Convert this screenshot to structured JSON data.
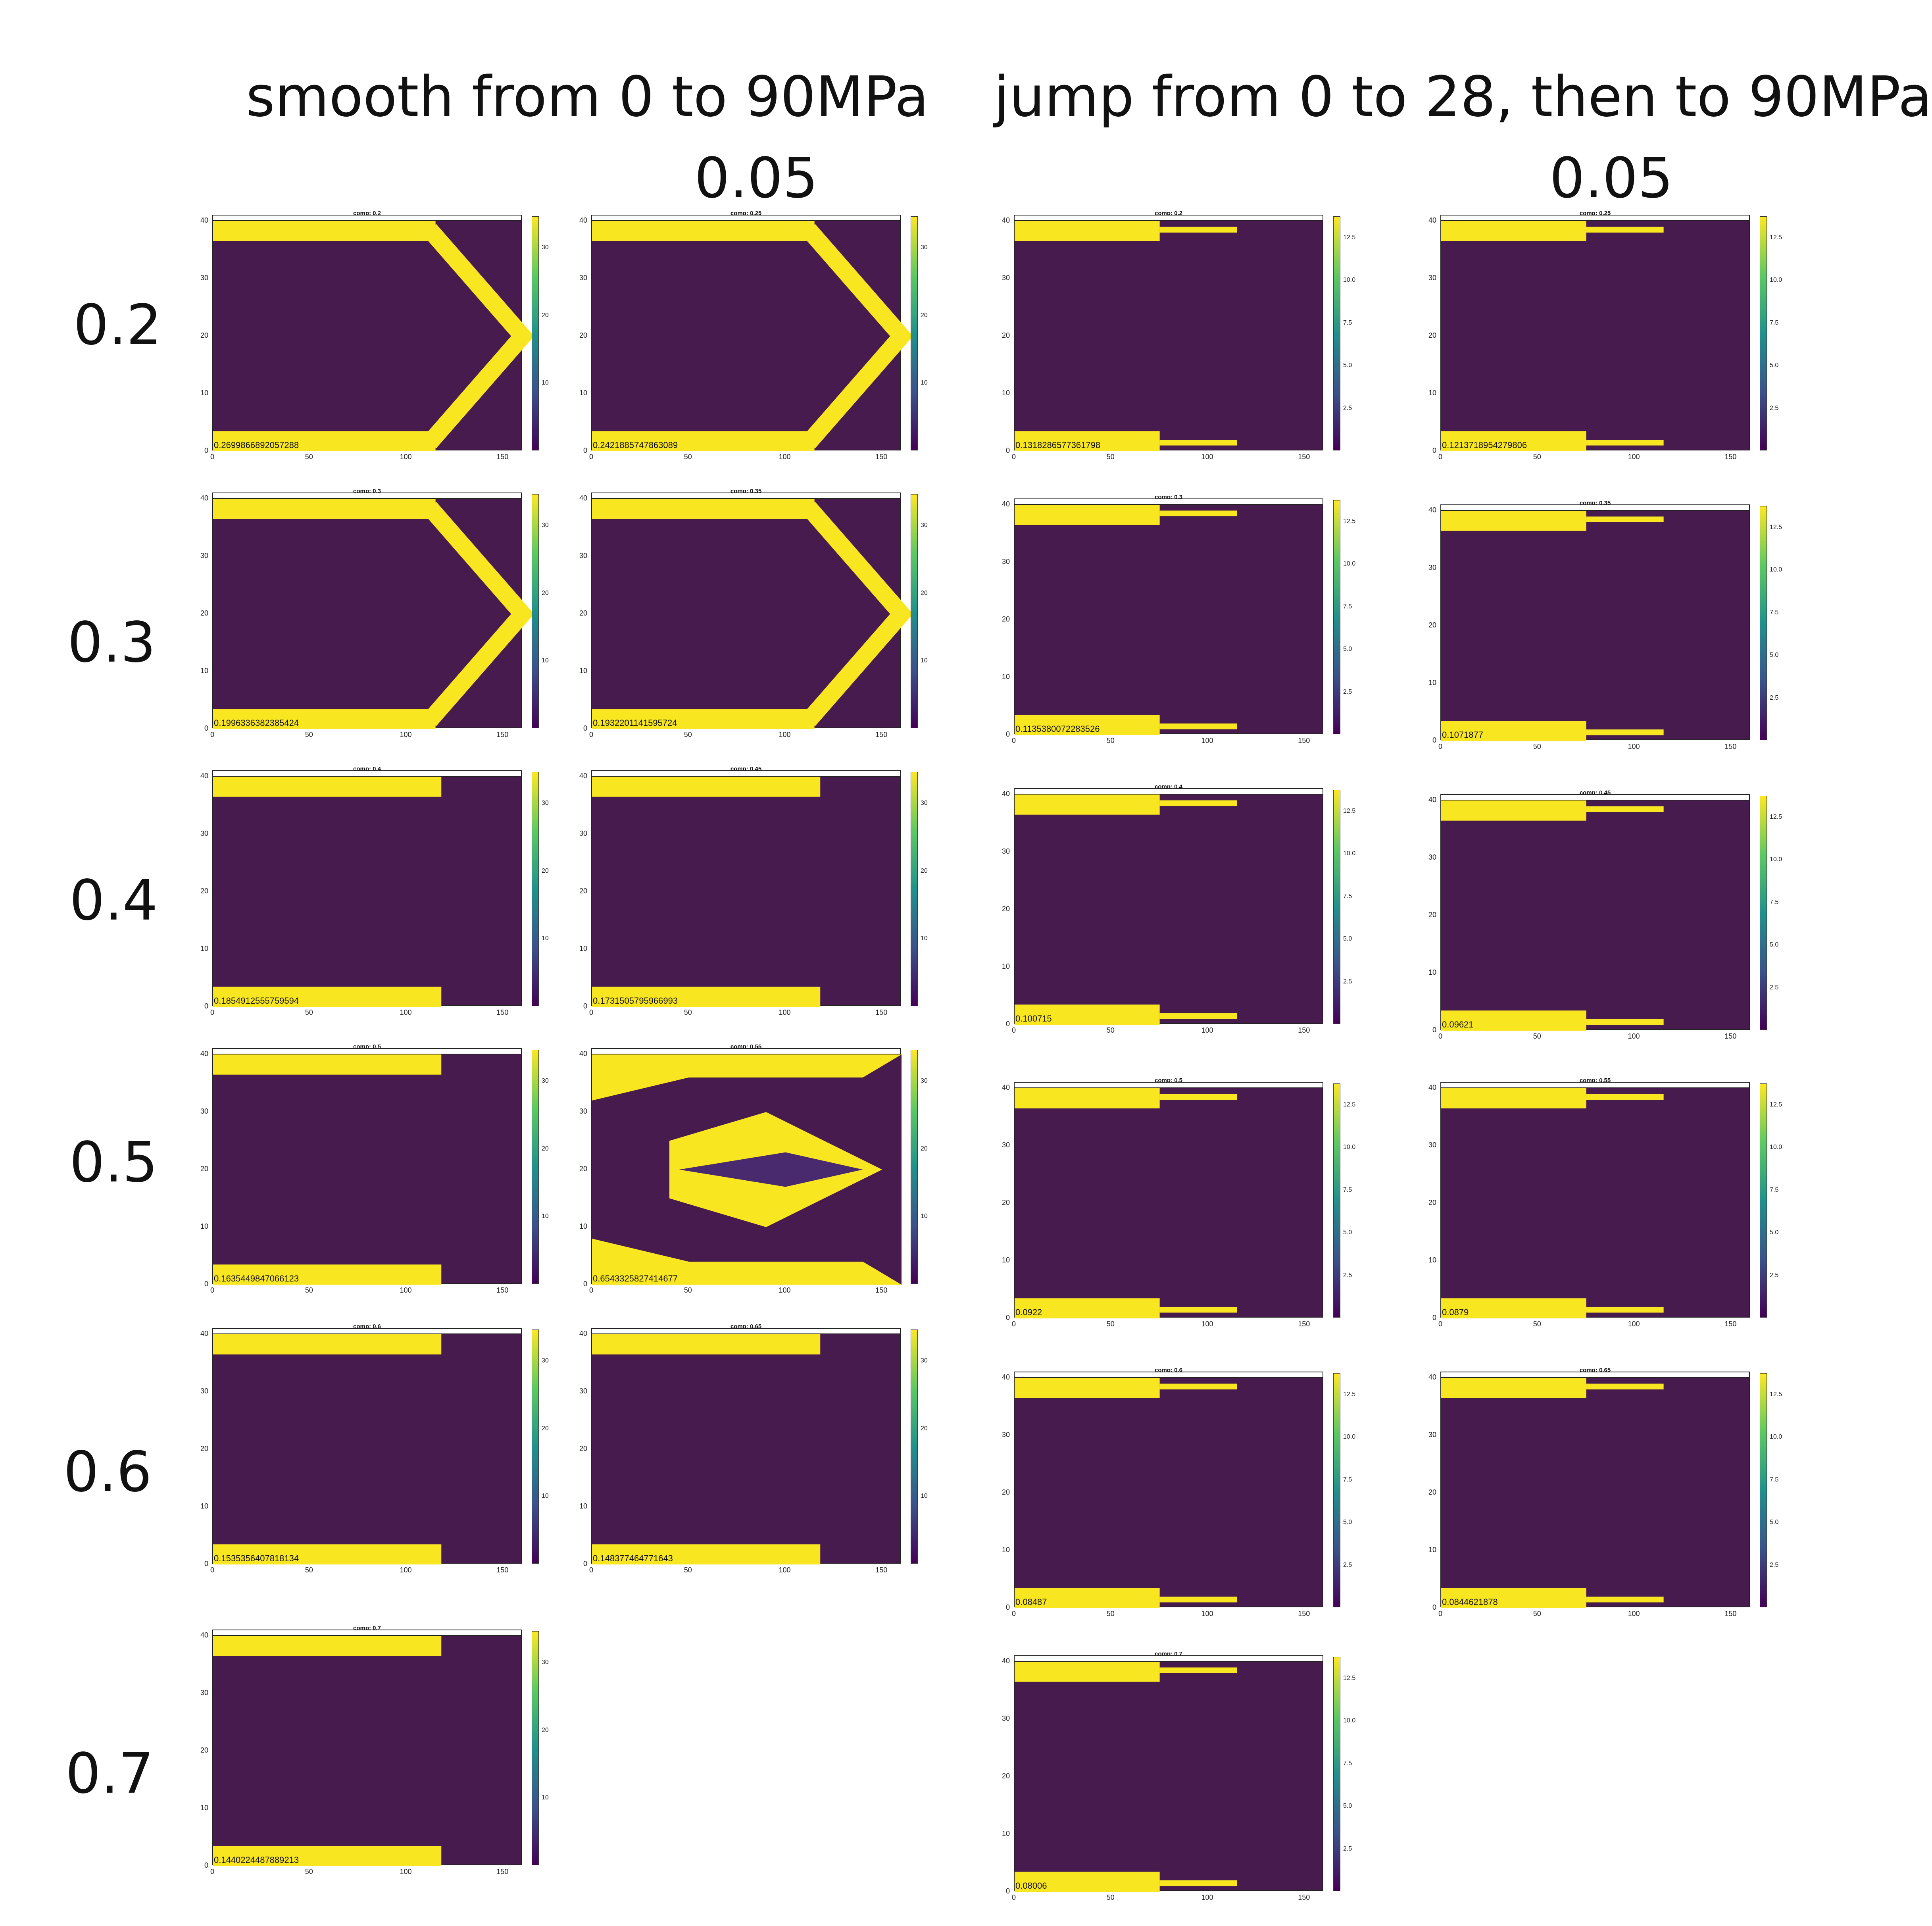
{
  "headers": {
    "left": "smooth from 0 to 90MPa",
    "right": "jump from 0 to 28, then to 90MPa",
    "left_sub": "0.05",
    "right_sub": "0.05"
  },
  "row_labels": [
    "0.2",
    "0.3",
    "0.4",
    "0.5",
    "0.6",
    "0.7"
  ],
  "colors": {
    "low": "#481b4f",
    "high": "#f8e621",
    "frame": "#222222"
  },
  "chart_data": [
    {
      "group": "smooth",
      "title": "comp: 0.2",
      "value_label": "0.2699866892057288",
      "type": "heatmap",
      "pattern": "chevron",
      "xlim": [
        0,
        160
      ],
      "ylim": [
        0,
        40
      ],
      "xticks": [
        "0",
        "50",
        "100",
        "150"
      ],
      "yticks": [
        "0",
        "10",
        "20",
        "30",
        "40"
      ],
      "colorbar": [
        "10",
        "20",
        "30"
      ]
    },
    {
      "group": "smooth",
      "title": "comp: 0.25",
      "value_label": "0.2421885747863089",
      "type": "heatmap",
      "pattern": "chevron",
      "xlim": [
        0,
        160
      ],
      "ylim": [
        0,
        40
      ],
      "xticks": [
        "0",
        "50",
        "100",
        "150"
      ],
      "yticks": [
        "0",
        "10",
        "20",
        "30",
        "40"
      ],
      "colorbar": [
        "10",
        "20",
        "30"
      ]
    },
    {
      "group": "smooth",
      "title": "comp: 0.3",
      "value_label": "0.1996336382385424",
      "type": "heatmap",
      "pattern": "chevron",
      "xlim": [
        0,
        160
      ],
      "ylim": [
        0,
        40
      ],
      "xticks": [
        "0",
        "50",
        "100",
        "150"
      ],
      "yticks": [
        "0",
        "10",
        "20",
        "30",
        "40"
      ],
      "colorbar": [
        "10",
        "20",
        "30"
      ]
    },
    {
      "group": "smooth",
      "title": "comp: 0.35",
      "value_label": "0.1932201141595724",
      "type": "heatmap",
      "pattern": "chevron",
      "xlim": [
        0,
        160
      ],
      "ylim": [
        0,
        40
      ],
      "xticks": [
        "0",
        "50",
        "100",
        "150"
      ],
      "yticks": [
        "0",
        "10",
        "20",
        "30",
        "40"
      ],
      "colorbar": [
        "10",
        "20",
        "30"
      ]
    },
    {
      "group": "smooth",
      "title": "comp: 0.4",
      "value_label": "0.1854912555759594",
      "type": "heatmap",
      "pattern": "bands",
      "xlim": [
        0,
        160
      ],
      "ylim": [
        0,
        40
      ],
      "xticks": [
        "0",
        "50",
        "100",
        "150"
      ],
      "yticks": [
        "0",
        "10",
        "20",
        "30",
        "40"
      ],
      "colorbar": [
        "10",
        "20",
        "30"
      ]
    },
    {
      "group": "smooth",
      "title": "comp: 0.45",
      "value_label": "0.1731505795966993",
      "type": "heatmap",
      "pattern": "bands",
      "xlim": [
        0,
        160
      ],
      "ylim": [
        0,
        40
      ],
      "xticks": [
        "0",
        "50",
        "100",
        "150"
      ],
      "yticks": [
        "0",
        "10",
        "20",
        "30",
        "40"
      ],
      "colorbar": [
        "10",
        "20",
        "30"
      ]
    },
    {
      "group": "smooth",
      "title": "comp: 0.5",
      "value_label": "0.1635449847066123",
      "type": "heatmap",
      "pattern": "bands",
      "xlim": [
        0,
        160
      ],
      "ylim": [
        0,
        40
      ],
      "xticks": [
        "0",
        "50",
        "100",
        "150"
      ],
      "yticks": [
        "0",
        "10",
        "20",
        "30",
        "40"
      ],
      "colorbar": [
        "10",
        "20",
        "30"
      ]
    },
    {
      "group": "smooth",
      "title": "comp: 0.55",
      "value_label": "0.6543325827414677",
      "type": "heatmap",
      "pattern": "fork",
      "xlim": [
        0,
        160
      ],
      "ylim": [
        0,
        40
      ],
      "xticks": [
        "0",
        "50",
        "100",
        "150"
      ],
      "yticks": [
        "0",
        "10",
        "20",
        "30",
        "40"
      ],
      "colorbar": [
        "10",
        "20",
        "30"
      ]
    },
    {
      "group": "smooth",
      "title": "comp: 0.6",
      "value_label": "0.1535356407818134",
      "type": "heatmap",
      "pattern": "bands",
      "xlim": [
        0,
        160
      ],
      "ylim": [
        0,
        40
      ],
      "xticks": [
        "0",
        "50",
        "100",
        "150"
      ],
      "yticks": [
        "0",
        "10",
        "20",
        "30",
        "40"
      ],
      "colorbar": [
        "10",
        "20",
        "30"
      ]
    },
    {
      "group": "smooth",
      "title": "comp: 0.65",
      "value_label": "0.148377464771643",
      "type": "heatmap",
      "pattern": "bands",
      "xlim": [
        0,
        160
      ],
      "ylim": [
        0,
        40
      ],
      "xticks": [
        "0",
        "50",
        "100",
        "150"
      ],
      "yticks": [
        "0",
        "10",
        "20",
        "30",
        "40"
      ],
      "colorbar": [
        "10",
        "20",
        "30"
      ]
    },
    {
      "group": "smooth",
      "title": "comp: 0.7",
      "value_label": "0.1440224487889213",
      "type": "heatmap",
      "pattern": "bands",
      "xlim": [
        0,
        160
      ],
      "ylim": [
        0,
        40
      ],
      "xticks": [
        "0",
        "50",
        "100",
        "150"
      ],
      "yticks": [
        "0",
        "10",
        "20",
        "30",
        "40"
      ],
      "colorbar": [
        "10",
        "20",
        "30"
      ]
    },
    {
      "group": "jump",
      "title": "comp: 0.2",
      "value_label": "0.1318286577361798",
      "type": "heatmap",
      "pattern": "short",
      "xlim": [
        0,
        160
      ],
      "ylim": [
        0,
        40
      ],
      "xticks": [
        "0",
        "50",
        "100",
        "150"
      ],
      "yticks": [
        "0",
        "10",
        "20",
        "30",
        "40"
      ],
      "colorbar": [
        "2.5",
        "5.0",
        "7.5",
        "10.0",
        "12.5"
      ]
    },
    {
      "group": "jump",
      "title": "comp: 0.25",
      "value_label": "0.1213718954279806",
      "type": "heatmap",
      "pattern": "short",
      "xlim": [
        0,
        160
      ],
      "ylim": [
        0,
        40
      ],
      "xticks": [
        "0",
        "50",
        "100",
        "150"
      ],
      "yticks": [
        "0",
        "10",
        "20",
        "30",
        "40"
      ],
      "colorbar": [
        "2.5",
        "5.0",
        "7.5",
        "10.0",
        "12.5"
      ]
    },
    {
      "group": "jump",
      "title": "comp: 0.3",
      "value_label": "0.1135380072283526",
      "type": "heatmap",
      "pattern": "short",
      "xlim": [
        0,
        160
      ],
      "ylim": [
        0,
        40
      ],
      "xticks": [
        "0",
        "50",
        "100",
        "150"
      ],
      "yticks": [
        "0",
        "10",
        "20",
        "30",
        "40"
      ],
      "colorbar": [
        "2.5",
        "5.0",
        "7.5",
        "10.0",
        "12.5"
      ]
    },
    {
      "group": "jump",
      "title": "comp: 0.35",
      "value_label": "0.1071877",
      "type": "heatmap",
      "pattern": "short",
      "xlim": [
        0,
        160
      ],
      "ylim": [
        0,
        40
      ],
      "xticks": [
        "0",
        "50",
        "100",
        "150"
      ],
      "yticks": [
        "0",
        "10",
        "20",
        "30",
        "40"
      ],
      "colorbar": [
        "2.5",
        "5.0",
        "7.5",
        "10.0",
        "12.5"
      ]
    },
    {
      "group": "jump",
      "title": "comp: 0.4",
      "value_label": "0.100715",
      "type": "heatmap",
      "pattern": "short",
      "xlim": [
        0,
        160
      ],
      "ylim": [
        0,
        40
      ],
      "xticks": [
        "0",
        "50",
        "100",
        "150"
      ],
      "yticks": [
        "0",
        "10",
        "20",
        "30",
        "40"
      ],
      "colorbar": [
        "2.5",
        "5.0",
        "7.5",
        "10.0",
        "12.5"
      ]
    },
    {
      "group": "jump",
      "title": "comp: 0.45",
      "value_label": "0.09621",
      "type": "heatmap",
      "pattern": "short",
      "xlim": [
        0,
        160
      ],
      "ylim": [
        0,
        40
      ],
      "xticks": [
        "0",
        "50",
        "100",
        "150"
      ],
      "yticks": [
        "0",
        "10",
        "20",
        "30",
        "40"
      ],
      "colorbar": [
        "2.5",
        "5.0",
        "7.5",
        "10.0",
        "12.5"
      ]
    },
    {
      "group": "jump",
      "title": "comp: 0.5",
      "value_label": "0.0922",
      "type": "heatmap",
      "pattern": "short",
      "xlim": [
        0,
        160
      ],
      "ylim": [
        0,
        40
      ],
      "xticks": [
        "0",
        "50",
        "100",
        "150"
      ],
      "yticks": [
        "0",
        "10",
        "20",
        "30",
        "40"
      ],
      "colorbar": [
        "2.5",
        "5.0",
        "7.5",
        "10.0",
        "12.5"
      ]
    },
    {
      "group": "jump",
      "title": "comp: 0.55",
      "value_label": "0.0879",
      "type": "heatmap",
      "pattern": "short",
      "xlim": [
        0,
        160
      ],
      "ylim": [
        0,
        40
      ],
      "xticks": [
        "0",
        "50",
        "100",
        "150"
      ],
      "yticks": [
        "0",
        "10",
        "20",
        "30",
        "40"
      ],
      "colorbar": [
        "2.5",
        "5.0",
        "7.5",
        "10.0",
        "12.5"
      ]
    },
    {
      "group": "jump",
      "title": "comp: 0.6",
      "value_label": "0.08487",
      "type": "heatmap",
      "pattern": "short",
      "xlim": [
        0,
        160
      ],
      "ylim": [
        0,
        40
      ],
      "xticks": [
        "0",
        "50",
        "100",
        "150"
      ],
      "yticks": [
        "0",
        "10",
        "20",
        "30",
        "40"
      ],
      "colorbar": [
        "2.5",
        "5.0",
        "7.5",
        "10.0",
        "12.5"
      ]
    },
    {
      "group": "jump",
      "title": "comp: 0.65",
      "value_label": "0.0844621878",
      "type": "heatmap",
      "pattern": "short",
      "xlim": [
        0,
        160
      ],
      "ylim": [
        0,
        40
      ],
      "xticks": [
        "0",
        "50",
        "100",
        "150"
      ],
      "yticks": [
        "0",
        "10",
        "20",
        "30",
        "40"
      ],
      "colorbar": [
        "2.5",
        "5.0",
        "7.5",
        "10.0",
        "12.5"
      ]
    },
    {
      "group": "jump",
      "title": "comp: 0.7",
      "value_label": "0.08006",
      "type": "heatmap",
      "pattern": "short",
      "xlim": [
        0,
        160
      ],
      "ylim": [
        0,
        40
      ],
      "xticks": [
        "0",
        "50",
        "100",
        "150"
      ],
      "yticks": [
        "0",
        "10",
        "20",
        "30",
        "40"
      ],
      "colorbar": [
        "2.5",
        "5.0",
        "7.5",
        "10.0",
        "12.5"
      ]
    }
  ]
}
